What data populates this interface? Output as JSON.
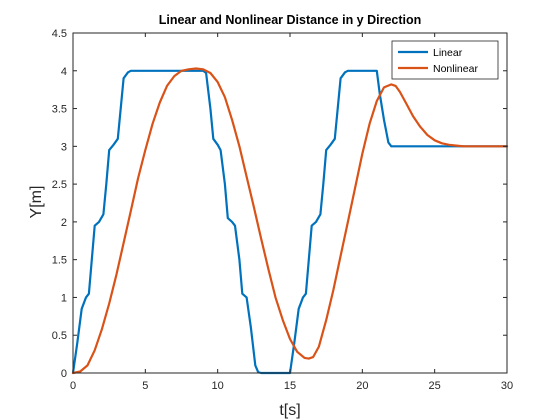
{
  "chart_data": {
    "type": "line",
    "title": "Linear and Nonlinear Distance in y Direction",
    "xlabel": "t[s]",
    "ylabel": "Y[m]",
    "xlim": [
      0,
      30
    ],
    "ylim": [
      0,
      4.5
    ],
    "xticks": [
      0,
      5,
      10,
      15,
      20,
      25,
      30
    ],
    "yticks": [
      0,
      0.5,
      1,
      1.5,
      2,
      2.5,
      3,
      3.5,
      4,
      4.5
    ],
    "ytick_labels": [
      "0",
      "0.5",
      "1",
      "1.5",
      "2",
      "2.5",
      "3",
      "3.5",
      "4",
      "4.5"
    ],
    "grid": false,
    "legend_position": "top-right",
    "series": [
      {
        "name": "Linear",
        "color": "#0072BD",
        "x": [
          0,
          0.3,
          0.6,
          0.9,
          1.1,
          1.3,
          1.5,
          1.8,
          2.1,
          2.3,
          2.5,
          2.8,
          3.1,
          3.3,
          3.5,
          3.8,
          4.0,
          5.0,
          6.0,
          7.0,
          8.0,
          9.0,
          9.2,
          9.5,
          9.7,
          10.0,
          10.2,
          10.5,
          10.7,
          11.0,
          11.2,
          11.5,
          11.7,
          12.0,
          12.3,
          12.6,
          12.8,
          13.0,
          14.0,
          15.0,
          15.3,
          15.6,
          15.9,
          16.1,
          16.3,
          16.5,
          16.8,
          17.1,
          17.3,
          17.5,
          17.8,
          18.1,
          18.3,
          18.5,
          18.8,
          19.0,
          20.0,
          21.0,
          21.2,
          21.5,
          21.8,
          22.0,
          23.0,
          25.0,
          27.0,
          30.0
        ],
        "y": [
          0,
          0.4,
          0.85,
          1.0,
          1.05,
          1.5,
          1.95,
          2.0,
          2.1,
          2.5,
          2.95,
          3.02,
          3.1,
          3.5,
          3.9,
          3.98,
          4.0,
          4.0,
          4.0,
          4.0,
          4.0,
          4.0,
          3.97,
          3.5,
          3.1,
          3.02,
          2.95,
          2.5,
          2.05,
          2.0,
          1.95,
          1.5,
          1.05,
          1.0,
          0.6,
          0.1,
          0.01,
          0,
          0,
          0,
          0.4,
          0.85,
          1.0,
          1.05,
          1.5,
          1.95,
          2.0,
          2.1,
          2.5,
          2.95,
          3.02,
          3.1,
          3.5,
          3.9,
          3.98,
          4.0,
          4.0,
          4.0,
          3.7,
          3.35,
          3.05,
          3.0,
          3.0,
          3.0,
          3.0,
          3.0
        ]
      },
      {
        "name": "Nonlinear",
        "color": "#D95319",
        "x": [
          0,
          0.5,
          1.0,
          1.5,
          2.0,
          2.5,
          3.0,
          3.5,
          4.0,
          4.5,
          5.0,
          5.5,
          6.0,
          6.5,
          7.0,
          7.5,
          8.0,
          8.5,
          9.0,
          9.5,
          10.0,
          10.5,
          11.0,
          11.5,
          12.0,
          12.5,
          13.0,
          13.5,
          14.0,
          14.5,
          15.0,
          15.5,
          16.0,
          16.3,
          16.6,
          17.0,
          17.5,
          18.0,
          18.5,
          19.0,
          19.5,
          20.0,
          20.5,
          21.0,
          21.5,
          22.0,
          22.3,
          22.6,
          23.0,
          23.5,
          24.0,
          24.5,
          25.0,
          25.5,
          26.0,
          26.5,
          27.0,
          28.0,
          29.0,
          30.0
        ],
        "y": [
          0,
          0.02,
          0.1,
          0.3,
          0.58,
          0.92,
          1.3,
          1.72,
          2.15,
          2.58,
          2.95,
          3.3,
          3.58,
          3.8,
          3.93,
          4.0,
          4.02,
          4.03,
          4.02,
          3.97,
          3.85,
          3.65,
          3.35,
          3.0,
          2.6,
          2.2,
          1.78,
          1.38,
          1.0,
          0.7,
          0.45,
          0.28,
          0.2,
          0.19,
          0.21,
          0.35,
          0.7,
          1.1,
          1.55,
          2.0,
          2.45,
          2.9,
          3.3,
          3.6,
          3.78,
          3.82,
          3.8,
          3.72,
          3.58,
          3.4,
          3.26,
          3.15,
          3.08,
          3.04,
          3.02,
          3.01,
          3.0,
          3.0,
          3.0,
          3.0
        ]
      }
    ]
  }
}
